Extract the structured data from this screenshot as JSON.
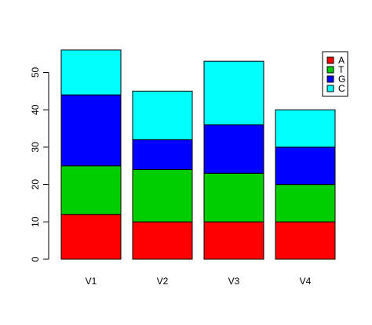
{
  "chart_data": {
    "type": "bar",
    "stacked": true,
    "categories": [
      "V1",
      "V2",
      "V3",
      "V4"
    ],
    "series": [
      {
        "name": "A",
        "color": "#ff0000",
        "values": [
          12,
          10,
          10,
          10
        ]
      },
      {
        "name": "T",
        "color": "#00cd00",
        "values": [
          13,
          14,
          13,
          10
        ]
      },
      {
        "name": "G",
        "color": "#0000ff",
        "values": [
          19,
          8,
          13,
          10
        ]
      },
      {
        "name": "C",
        "color": "#00ffff",
        "values": [
          12,
          13,
          17,
          10
        ]
      }
    ],
    "yticks": [
      0,
      10,
      20,
      30,
      40,
      50
    ],
    "ylim": [
      0,
      56
    ],
    "legend": {
      "position": "top-right",
      "order": [
        "A",
        "T",
        "G",
        "C"
      ]
    },
    "grid": false
  }
}
